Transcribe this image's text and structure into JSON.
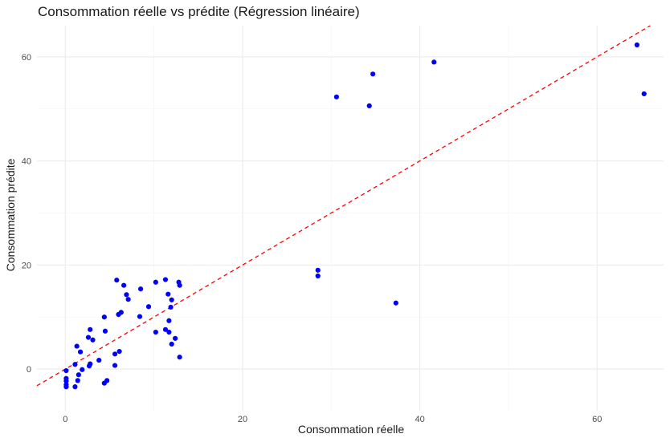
{
  "chart_data": {
    "type": "scatter",
    "title": "Consommation réelle vs prédite (Régression linéaire)",
    "xlabel": "Consommation réelle",
    "ylabel": "Consommation prédite",
    "xlim": [
      -3.2,
      67.5
    ],
    "ylim": [
      -8,
      66
    ],
    "xticks": [
      0,
      20,
      40,
      60
    ],
    "yticks": [
      0,
      20,
      40,
      60
    ],
    "xminor": [
      10,
      30,
      50
    ],
    "yminor": [
      10,
      30,
      50
    ],
    "grid": true,
    "point_color": "#0000ff",
    "reference_line": {
      "type": "identity",
      "color": "#ff0000",
      "style": "dashed"
    },
    "points": [
      {
        "x": 0.1,
        "y": -0.3
      },
      {
        "x": 0.1,
        "y": -1.8
      },
      {
        "x": 0.1,
        "y": -2.3
      },
      {
        "x": 0.1,
        "y": -3.0
      },
      {
        "x": 0.1,
        "y": -3.4
      },
      {
        "x": 1.1,
        "y": -3.4
      },
      {
        "x": 1.1,
        "y": 0.9
      },
      {
        "x": 1.3,
        "y": 4.4
      },
      {
        "x": 1.4,
        "y": -2.2
      },
      {
        "x": 1.5,
        "y": -1.1
      },
      {
        "x": 1.7,
        "y": 3.3
      },
      {
        "x": 1.9,
        "y": -0.1
      },
      {
        "x": 2.6,
        "y": 6.1
      },
      {
        "x": 2.7,
        "y": 0.6
      },
      {
        "x": 2.8,
        "y": 7.6
      },
      {
        "x": 2.8,
        "y": 1.0
      },
      {
        "x": 3.1,
        "y": 5.6
      },
      {
        "x": 3.8,
        "y": 1.7
      },
      {
        "x": 4.4,
        "y": 10.0
      },
      {
        "x": 4.4,
        "y": -2.7
      },
      {
        "x": 4.5,
        "y": 7.3
      },
      {
        "x": 4.7,
        "y": -2.2
      },
      {
        "x": 5.6,
        "y": 0.7
      },
      {
        "x": 5.6,
        "y": 2.9
      },
      {
        "x": 5.8,
        "y": 17.1
      },
      {
        "x": 6.0,
        "y": 10.5
      },
      {
        "x": 6.1,
        "y": 3.4
      },
      {
        "x": 6.3,
        "y": 10.9
      },
      {
        "x": 6.6,
        "y": 16.1
      },
      {
        "x": 6.9,
        "y": 14.3
      },
      {
        "x": 7.1,
        "y": 13.4
      },
      {
        "x": 8.4,
        "y": 10.1
      },
      {
        "x": 8.5,
        "y": 15.4
      },
      {
        "x": 9.4,
        "y": 12.0
      },
      {
        "x": 10.2,
        "y": 16.7
      },
      {
        "x": 10.2,
        "y": 7.1
      },
      {
        "x": 11.3,
        "y": 17.2
      },
      {
        "x": 11.3,
        "y": 7.6
      },
      {
        "x": 11.6,
        "y": 14.4
      },
      {
        "x": 11.7,
        "y": 7.1
      },
      {
        "x": 11.7,
        "y": 9.3
      },
      {
        "x": 11.9,
        "y": 11.9
      },
      {
        "x": 12.0,
        "y": 13.3
      },
      {
        "x": 12.0,
        "y": 4.8
      },
      {
        "x": 12.4,
        "y": 5.9
      },
      {
        "x": 12.8,
        "y": 16.7
      },
      {
        "x": 12.9,
        "y": 16.1
      },
      {
        "x": 12.9,
        "y": 2.3
      },
      {
        "x": 28.5,
        "y": 19.0
      },
      {
        "x": 28.5,
        "y": 17.9
      },
      {
        "x": 30.6,
        "y": 52.3
      },
      {
        "x": 34.3,
        "y": 50.6
      },
      {
        "x": 34.7,
        "y": 56.7
      },
      {
        "x": 37.3,
        "y": 12.7
      },
      {
        "x": 41.6,
        "y": 59.0
      },
      {
        "x": 64.5,
        "y": 62.3
      },
      {
        "x": 65.3,
        "y": 52.9
      }
    ]
  }
}
